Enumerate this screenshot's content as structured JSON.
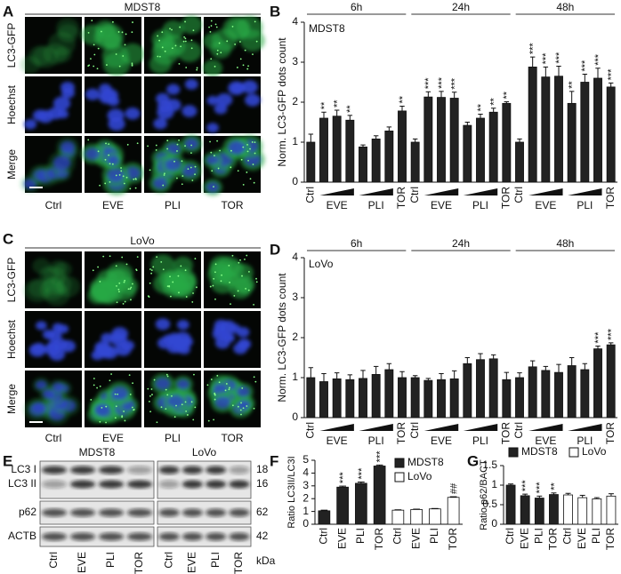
{
  "microscopy": [
    {
      "panel_label": "A",
      "title": "MDST8",
      "rows": [
        {
          "label": "LC3-GFP",
          "color": "#2e9e3e"
        },
        {
          "label": "Hoechst",
          "color": "#3340c0"
        },
        {
          "label": "Merge",
          "color": "#111111"
        }
      ],
      "columns": [
        "Ctrl",
        "EVE",
        "PLI",
        "TOR"
      ]
    },
    {
      "panel_label": "C",
      "title": "LoVo",
      "rows": [
        {
          "label": "LC3-GFP",
          "color": "#2e9e3e"
        },
        {
          "label": "Hoechst",
          "color": "#3340c0"
        },
        {
          "label": "Merge",
          "color": "#111111"
        }
      ],
      "columns": [
        "Ctrl",
        "EVE",
        "PLI",
        "TOR"
      ]
    }
  ],
  "blot": {
    "panel_label": "E",
    "cell_lines": [
      "MDST8",
      "LoVo"
    ],
    "rows": [
      "LC3 I",
      "LC3 II",
      "p62",
      "ACTB"
    ],
    "kda": [
      18,
      16,
      62,
      42
    ],
    "kda_label": "kDa",
    "lanes": [
      "Ctrl",
      "EVE",
      "PLI",
      "TOR"
    ]
  },
  "chart_data": [
    {
      "type": "bar",
      "panel_label": "B",
      "title": "MDST8",
      "ylabel": "Norm. LC3-GFP dots count",
      "ylim": [
        0,
        4
      ],
      "yticks": [
        0,
        1,
        2,
        3,
        4
      ],
      "color": "#222222",
      "categories": [
        "Ctrl",
        null,
        "EVE",
        null,
        null,
        "PLI",
        null,
        "TOR"
      ],
      "groups": [
        {
          "name": "6h",
          "values": [
            1.0,
            1.6,
            1.65,
            1.55,
            0.88,
            1.08,
            1.28,
            1.78
          ],
          "errors": [
            0.2,
            0.15,
            0.15,
            0.12,
            0.05,
            0.08,
            0.1,
            0.12
          ],
          "annotations": [
            null,
            "**",
            "**",
            "**",
            null,
            null,
            null,
            "**"
          ]
        },
        {
          "name": "24h",
          "values": [
            1.0,
            2.13,
            2.12,
            2.1,
            1.42,
            1.6,
            1.75,
            1.97
          ],
          "errors": [
            0.08,
            0.13,
            0.15,
            0.15,
            0.08,
            0.1,
            0.1,
            0.04
          ],
          "annotations": [
            null,
            "***",
            "***",
            "***",
            null,
            "**",
            "**",
            "**"
          ]
        },
        {
          "name": "48h",
          "values": [
            1.0,
            2.88,
            2.63,
            2.65,
            1.97,
            2.5,
            2.6,
            2.38
          ],
          "errors": [
            0.08,
            0.25,
            0.25,
            0.25,
            0.3,
            0.2,
            0.25,
            0.1
          ],
          "annotations": [
            null,
            "***",
            "***",
            "***",
            "**",
            "***",
            "***",
            "***"
          ]
        }
      ]
    },
    {
      "type": "bar",
      "panel_label": "D",
      "title": "LoVo",
      "ylabel": "Norm. LC3-GFP dots count",
      "ylim": [
        0,
        4
      ],
      "yticks": [
        0,
        1,
        2,
        3,
        4
      ],
      "color": "#222222",
      "categories": [
        "Ctrl",
        null,
        "EVE",
        null,
        null,
        "PLI",
        null,
        "TOR"
      ],
      "groups": [
        {
          "name": "6h",
          "values": [
            1.0,
            0.9,
            0.97,
            0.95,
            0.98,
            1.08,
            1.2,
            1.0
          ],
          "errors": [
            0.25,
            0.2,
            0.15,
            0.12,
            0.2,
            0.2,
            0.15,
            0.15
          ],
          "annotations": [
            null,
            null,
            null,
            null,
            null,
            null,
            null,
            null
          ]
        },
        {
          "name": "24h",
          "values": [
            1.0,
            0.93,
            0.95,
            0.97,
            1.35,
            1.45,
            1.47,
            0.95
          ],
          "errors": [
            0.05,
            0.05,
            0.15,
            0.2,
            0.15,
            0.15,
            0.1,
            0.18
          ],
          "annotations": [
            null,
            null,
            null,
            null,
            null,
            null,
            null,
            null
          ]
        },
        {
          "name": "48h",
          "values": [
            1.0,
            1.27,
            1.18,
            1.13,
            1.3,
            1.2,
            1.72,
            1.82
          ],
          "errors": [
            0.12,
            0.15,
            0.1,
            0.2,
            0.2,
            0.15,
            0.07,
            0.05
          ],
          "annotations": [
            null,
            null,
            null,
            null,
            null,
            null,
            "***",
            "***"
          ]
        }
      ]
    },
    {
      "type": "bar",
      "panel_label": "F",
      "ylabel": "Ratio LC3II/LC3I",
      "ylim": [
        0,
        5
      ],
      "yticks": [
        0,
        1,
        2,
        3,
        4,
        5
      ],
      "categories": [
        "Ctrl",
        "EVE",
        "PLI",
        "TOR"
      ],
      "legend": "upper right",
      "series": [
        {
          "name": "MDST8",
          "color": "#222222",
          "values": [
            1.05,
            2.9,
            3.2,
            4.55
          ],
          "errors": [
            0.05,
            0.08,
            0.1,
            0.08
          ],
          "annotations": [
            null,
            "***",
            "***",
            "***"
          ]
        },
        {
          "name": "LoVo",
          "color": "#ffffff",
          "values": [
            1.1,
            1.15,
            1.2,
            2.1
          ],
          "errors": [
            0.03,
            0.03,
            0.03,
            0.05
          ],
          "annotations": [
            null,
            null,
            null,
            "##"
          ]
        }
      ]
    },
    {
      "type": "bar",
      "panel_label": "G",
      "ylabel": "Ratio p62/BACT",
      "ylim": [
        0,
        1.5
      ],
      "yticks": [
        0,
        0.5,
        1,
        1.5
      ],
      "categories": [
        "Ctrl",
        "EVE",
        "PLI",
        "TOR"
      ],
      "legend": "upper center",
      "series": [
        {
          "name": "MDST8",
          "color": "#222222",
          "values": [
            1.0,
            0.73,
            0.67,
            0.76
          ],
          "errors": [
            0.03,
            0.04,
            0.05,
            0.04
          ],
          "annotations": [
            null,
            "***",
            "***",
            "**"
          ]
        },
        {
          "name": "LoVo",
          "color": "#ffffff",
          "values": [
            0.75,
            0.68,
            0.65,
            0.72
          ],
          "errors": [
            0.04,
            0.06,
            0.03,
            0.06
          ],
          "annotations": [
            null,
            null,
            null,
            null
          ]
        }
      ]
    }
  ]
}
